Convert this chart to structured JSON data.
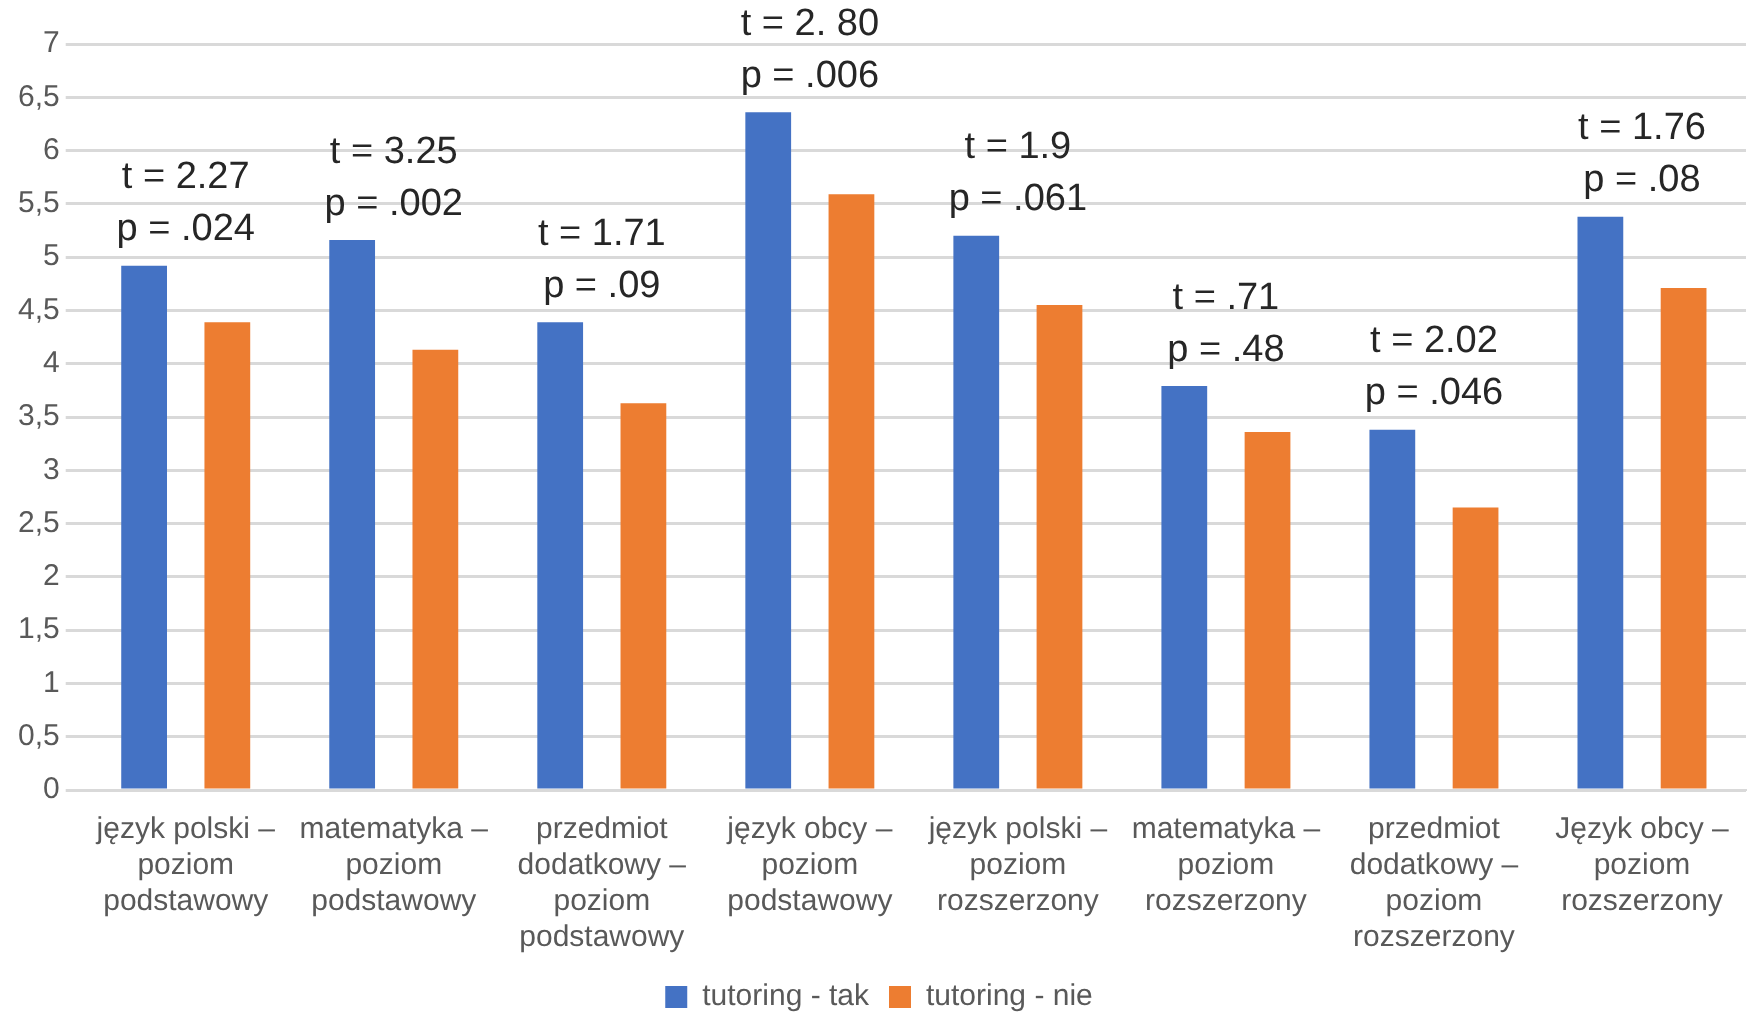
{
  "chart_data": {
    "type": "bar",
    "categories": [
      "język polski – poziom podstawowy",
      "matematyka – poziom podstawowy",
      "przedmiot dodatkowy – poziom podstawowy",
      "język obcy – poziom podstawowy",
      "język polski – poziom rozszerzony",
      "matematyka – poziom rozszerzony",
      "przedmiot dodatkowy – poziom rozszerzony",
      "Język obcy – poziom rozszerzony"
    ],
    "series": [
      {
        "name": "tutoring - tak",
        "color": "#4472c4",
        "values": [
          4.92,
          5.16,
          4.39,
          6.36,
          5.2,
          3.79,
          3.38,
          5.38
        ]
      },
      {
        "name": "tutoring - nie",
        "color": "#ed7d31",
        "values": [
          4.39,
          4.13,
          3.63,
          5.59,
          4.55,
          3.36,
          2.65,
          4.71
        ]
      }
    ],
    "ylim": [
      0,
      7
    ],
    "yticks": [
      0,
      {
        "value": 0.5,
        "label": "0,5"
      },
      1,
      {
        "value": 1.5,
        "label": "1,5"
      },
      2,
      {
        "value": 2.5,
        "label": "2,5"
      },
      3,
      {
        "value": 3.5,
        "label": "3,5"
      },
      4,
      {
        "value": 4.5,
        "label": "4,5"
      },
      5,
      {
        "value": 5.5,
        "label": "5,5"
      },
      6,
      {
        "value": 6.5,
        "label": "6,5"
      },
      7
    ],
    "grid": "y",
    "legend": "bottom",
    "annotations": [
      "t = 2.27",
      "p = .024",
      "t = 3.25",
      "p = .002",
      "t = 1.71",
      "p = .09",
      "t = 2. 80",
      "p = .006",
      "t = 1.9",
      "p = .061",
      "t = .71",
      "p = .48",
      "t = 2.02",
      "p = .046",
      "t = 1.76",
      "p = .08"
    ]
  }
}
